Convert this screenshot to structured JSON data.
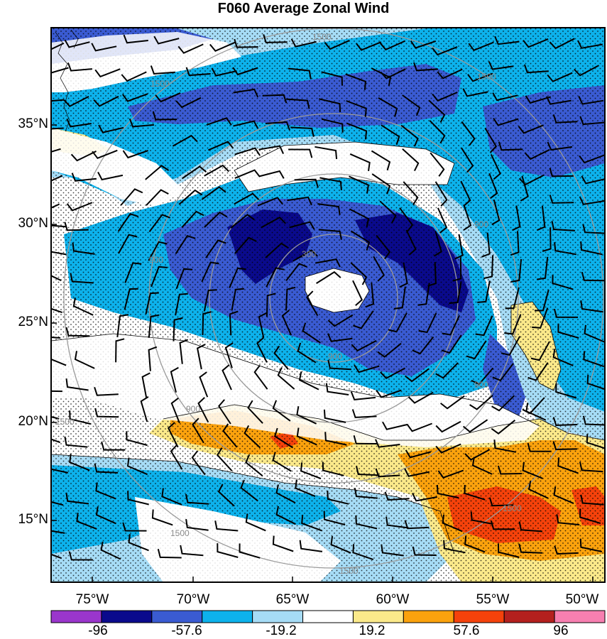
{
  "title": "F060 Average Zonal Wind",
  "lat_labels": [
    "35°N",
    "30°N",
    "25°N",
    "20°N",
    "15°N"
  ],
  "lon_labels": [
    "75°W",
    "70°W",
    "65°W",
    "60°W",
    "55°W",
    "50°W"
  ],
  "contour_labels": [
    "1500",
    "1500",
    "1500",
    "900",
    "900",
    "300",
    "900",
    "900",
    "900",
    "1500",
    "1500",
    "1500",
    "1500"
  ],
  "colorbar": {
    "labels": [
      "-96",
      "-57.6",
      "-19.2",
      "19.2",
      "57.6",
      "96"
    ],
    "colors": [
      "#9a36cc",
      "#0a0a8c",
      "#3a5bd2",
      "#0db2ec",
      "#a6dcf6",
      "#ffffff",
      "#fbe98a",
      "#fba20d",
      "#f5420b",
      "#b4201e",
      "#f77fb0"
    ]
  },
  "palette": {
    "deep_blue": "#0a0a8c",
    "blue": "#3a5bd2",
    "cyan": "#0db2ec",
    "light_blue": "#a6dcf6",
    "yellow": "#fbe98a",
    "orange": "#fba20d",
    "red": "#f5420b",
    "dark_red": "#b4201e"
  }
}
